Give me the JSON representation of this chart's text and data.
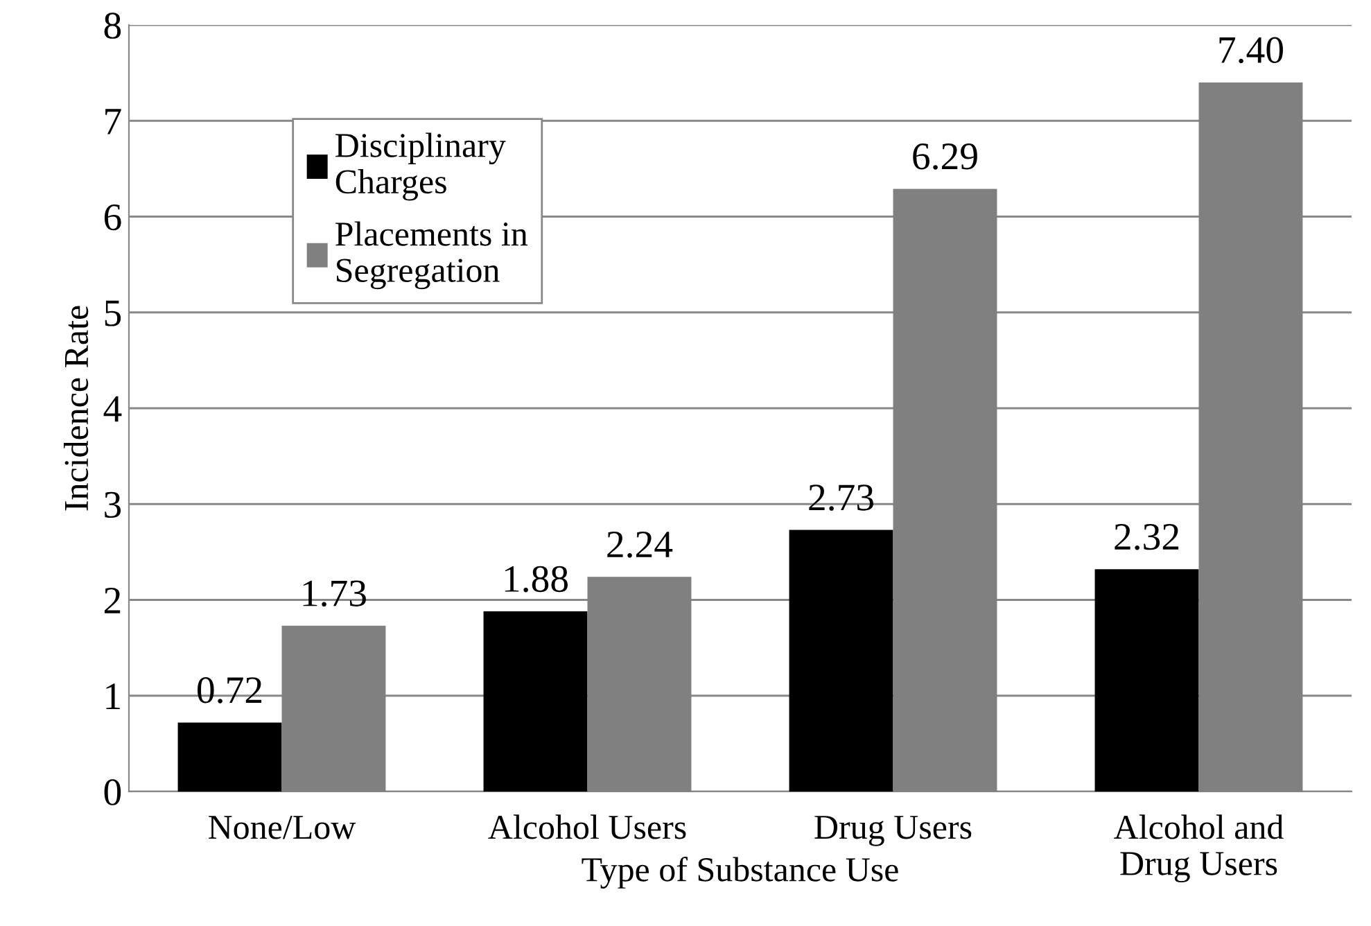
{
  "chart_data": {
    "type": "bar",
    "xlabel": "Type of Substance Use",
    "ylabel": "Incidence Rate",
    "categories": [
      "None/Low",
      "Alcohol Users",
      "Drug Users",
      "Alcohol and\nDrug Users"
    ],
    "series": [
      {
        "name": "Disciplinary\nCharges",
        "color": "#000000",
        "values": [
          0.72,
          1.88,
          2.73,
          2.32
        ],
        "value_labels": [
          "0.72",
          "1.88",
          "2.73",
          "2.32"
        ]
      },
      {
        "name": "Placements in\nSegregation",
        "color": "#808080",
        "values": [
          1.73,
          2.24,
          6.29,
          7.4
        ],
        "value_labels": [
          "1.73",
          "2.24",
          "6.29",
          "7.40"
        ]
      }
    ],
    "ylim": [
      0,
      8
    ],
    "yticks": [
      0,
      1,
      2,
      3,
      4,
      5,
      6,
      7,
      8
    ],
    "grid": "y",
    "legend": "top left"
  }
}
